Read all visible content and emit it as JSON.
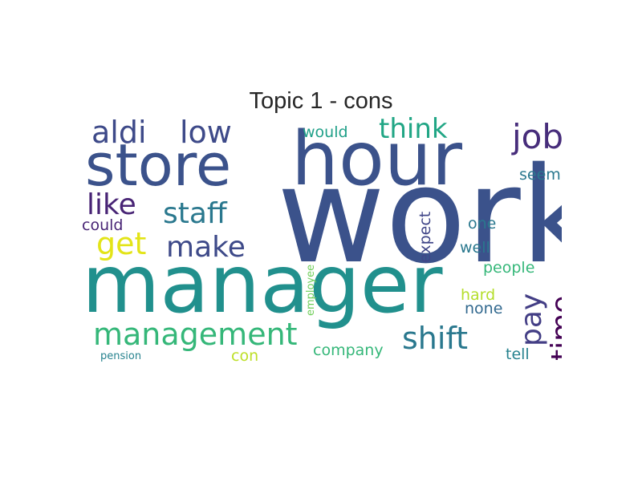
{
  "title": "Topic 1 - cons",
  "colors": {
    "background": "#ffffff",
    "title": "#262626",
    "palette": "viridis"
  },
  "words": [
    {
      "text": "work",
      "color": "#3b528b"
    },
    {
      "text": "manager",
      "color": "#21908d"
    },
    {
      "text": "hour",
      "color": "#3b528b"
    },
    {
      "text": "store",
      "color": "#3b528b"
    },
    {
      "text": "management",
      "color": "#35b779"
    },
    {
      "text": "job",
      "color": "#472d7b"
    },
    {
      "text": "aldi",
      "color": "#3e4a89"
    },
    {
      "text": "low",
      "color": "#3e4a89"
    },
    {
      "text": "think",
      "color": "#21a685"
    },
    {
      "text": "staff",
      "color": "#2a788e"
    },
    {
      "text": "like",
      "color": "#482475"
    },
    {
      "text": "get",
      "color": "#e3e418"
    },
    {
      "text": "make",
      "color": "#3e4a89"
    },
    {
      "text": "shift",
      "color": "#2a788e"
    },
    {
      "text": "pay",
      "color": "#433e85"
    },
    {
      "text": "time",
      "color": "#440154"
    },
    {
      "text": "company",
      "color": "#35b779"
    },
    {
      "text": "would",
      "color": "#1fa088"
    },
    {
      "text": "seem",
      "color": "#2a788e"
    },
    {
      "text": "one",
      "color": "#2a788e"
    },
    {
      "text": "well",
      "color": "#2a788e"
    },
    {
      "text": "expect",
      "color": "#404688"
    },
    {
      "text": "people",
      "color": "#35b779"
    },
    {
      "text": "hard",
      "color": "#b5de2b"
    },
    {
      "text": "none",
      "color": "#31688e"
    },
    {
      "text": "could",
      "color": "#482475"
    },
    {
      "text": "employee",
      "color": "#6ece58"
    },
    {
      "text": "con",
      "color": "#bddf26"
    },
    {
      "text": "tell",
      "color": "#26828e"
    },
    {
      "text": "pension",
      "color": "#26828e"
    }
  ]
}
